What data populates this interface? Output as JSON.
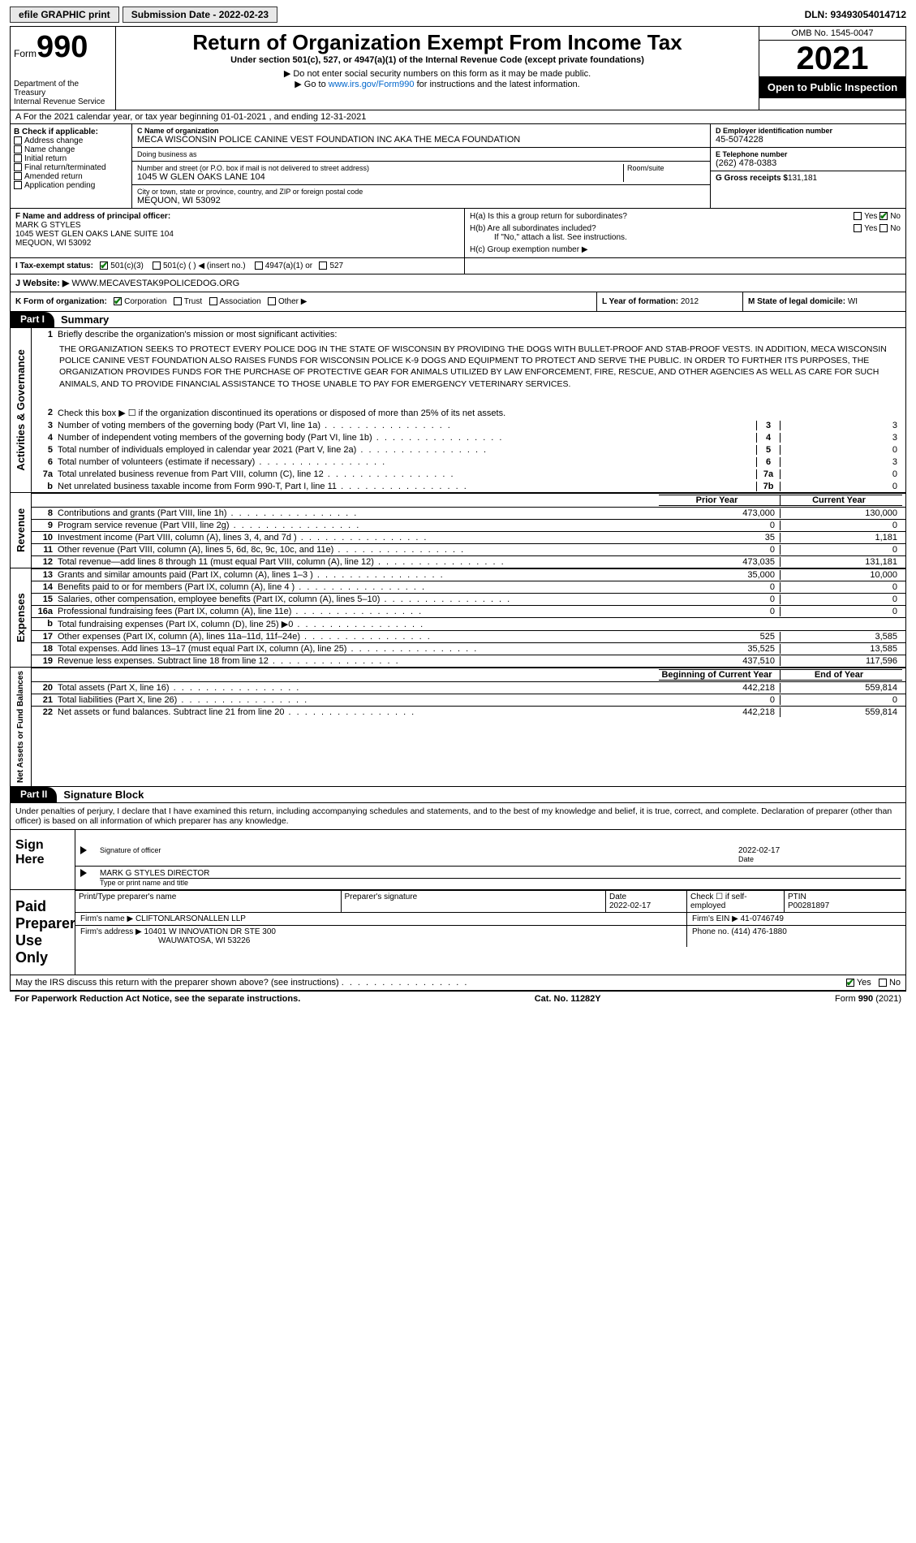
{
  "topbar": {
    "efile_label": "efile GRAPHIC print",
    "submission_label": "Submission Date - 2022-02-23",
    "dln": "DLN: 93493054014712"
  },
  "header": {
    "form_word": "Form",
    "form_num": "990",
    "dept": "Department of the Treasury",
    "irs": "Internal Revenue Service",
    "title": "Return of Organization Exempt From Income Tax",
    "subtitle": "Under section 501(c), 527, or 4947(a)(1) of the Internal Revenue Code (except private foundations)",
    "ssn_note": "▶ Do not enter social security numbers on this form as it may be made public.",
    "goto_pre": "▶ Go to ",
    "goto_link": "www.irs.gov/Form990",
    "goto_post": " for instructions and the latest information.",
    "omb": "OMB No. 1545-0047",
    "year": "2021",
    "open": "Open to Public Inspection"
  },
  "row_a": "A  For the 2021 calendar year, or tax year beginning 01-01-2021   , and ending 12-31-2021",
  "block_b": {
    "title": "B Check if applicable:",
    "items": [
      "Address change",
      "Name change",
      "Initial return",
      "Final return/terminated",
      "Amended return",
      "Application pending"
    ]
  },
  "block_c": {
    "name_label": "C Name of organization",
    "name": "MECA WISCONSIN POLICE CANINE VEST FOUNDATION INC AKA THE MECA FOUNDATION",
    "dba_label": "Doing business as",
    "dba": "",
    "addr_label": "Number and street (or P.O. box if mail is not delivered to street address)",
    "addr": "1045 W GLEN OAKS LANE 104",
    "room_label": "Room/suite",
    "city_label": "City or town, state or province, country, and ZIP or foreign postal code",
    "city": "MEQUON, WI  53092"
  },
  "block_d": {
    "ein_label": "D Employer identification number",
    "ein": "45-5074228",
    "tel_label": "E Telephone number",
    "tel": "(262) 478-0383",
    "gross_label": "G Gross receipts $",
    "gross": "131,181"
  },
  "block_f": {
    "label": "F  Name and address of principal officer:",
    "name": "MARK G STYLES",
    "addr1": "1045 WEST GLEN OAKS LANE SUITE 104",
    "addr2": "MEQUON, WI  53092"
  },
  "block_h": {
    "ha": "H(a)  Is this a group return for subordinates?",
    "hb": "H(b)  Are all subordinates included?",
    "hb_note": "If \"No,\" attach a list. See instructions.",
    "hc": "H(c)  Group exemption number ▶",
    "yes": "Yes",
    "no": "No"
  },
  "row_i": {
    "label": "I   Tax-exempt status:",
    "opts": [
      "501(c)(3)",
      "501(c) (   ) ◀ (insert no.)",
      "4947(a)(1) or",
      "527"
    ]
  },
  "row_j": {
    "label": "J   Website: ▶",
    "val": " WWW.MECAVESTAK9POLICEDOG.ORG"
  },
  "row_k": {
    "label": "K Form of organization:",
    "opts": [
      "Corporation",
      "Trust",
      "Association",
      "Other ▶"
    ]
  },
  "row_l": {
    "label": "L Year of formation: ",
    "val": "2012"
  },
  "row_m": {
    "label": "M State of legal domicile: ",
    "val": "WI"
  },
  "part1": {
    "hdr": "Part I",
    "title": "Summary",
    "line1_label": "Briefly describe the organization's mission or most significant activities:",
    "mission": "THE ORGANIZATION SEEKS TO PROTECT EVERY POLICE DOG IN THE STATE OF WISCONSIN BY PROVIDING THE DOGS WITH BULLET-PROOF AND STAB-PROOF VESTS. IN ADDITION, MECA WISCONSIN POLICE CANINE VEST FOUNDATION ALSO RAISES FUNDS FOR WISCONSIN POLICE K-9 DOGS AND EQUIPMENT TO PROTECT AND SERVE THE PUBLIC. IN ORDER TO FURTHER ITS PURPOSES, THE ORGANIZATION PROVIDES FUNDS FOR THE PURCHASE OF PROTECTIVE GEAR FOR ANIMALS UTILIZED BY LAW ENFORCEMENT, FIRE, RESCUE, AND OTHER AGENCIES AS WELL AS CARE FOR SUCH ANIMALS, AND TO PROVIDE FINANCIAL ASSISTANCE TO THOSE UNABLE TO PAY FOR EMERGENCY VETERINARY SERVICES.",
    "line2": "Check this box ▶ ☐ if the organization discontinued its operations or disposed of more than 25% of its net assets.",
    "tab_gov": "Activities & Governance",
    "tab_rev": "Revenue",
    "tab_exp": "Expenses",
    "tab_net": "Net Assets or Fund Balances",
    "py_hdr": "Prior Year",
    "cy_hdr": "Current Year",
    "boy_hdr": "Beginning of Current Year",
    "eoy_hdr": "End of Year",
    "lines_gov": [
      {
        "n": "3",
        "t": "Number of voting members of the governing body (Part VI, line 1a)",
        "box": "3",
        "v": "3"
      },
      {
        "n": "4",
        "t": "Number of independent voting members of the governing body (Part VI, line 1b)",
        "box": "4",
        "v": "3"
      },
      {
        "n": "5",
        "t": "Total number of individuals employed in calendar year 2021 (Part V, line 2a)",
        "box": "5",
        "v": "0"
      },
      {
        "n": "6",
        "t": "Total number of volunteers (estimate if necessary)",
        "box": "6",
        "v": "3"
      },
      {
        "n": "7a",
        "t": "Total unrelated business revenue from Part VIII, column (C), line 12",
        "box": "7a",
        "v": "0"
      },
      {
        "n": "b",
        "t": "Net unrelated business taxable income from Form 990-T, Part I, line 11",
        "box": "7b",
        "v": "0"
      }
    ],
    "lines_rev": [
      {
        "n": "8",
        "t": "Contributions and grants (Part VIII, line 1h)",
        "py": "473,000",
        "cy": "130,000"
      },
      {
        "n": "9",
        "t": "Program service revenue (Part VIII, line 2g)",
        "py": "0",
        "cy": "0"
      },
      {
        "n": "10",
        "t": "Investment income (Part VIII, column (A), lines 3, 4, and 7d )",
        "py": "35",
        "cy": "1,181"
      },
      {
        "n": "11",
        "t": "Other revenue (Part VIII, column (A), lines 5, 6d, 8c, 9c, 10c, and 11e)",
        "py": "0",
        "cy": "0"
      },
      {
        "n": "12",
        "t": "Total revenue—add lines 8 through 11 (must equal Part VIII, column (A), line 12)",
        "py": "473,035",
        "cy": "131,181"
      }
    ],
    "lines_exp": [
      {
        "n": "13",
        "t": "Grants and similar amounts paid (Part IX, column (A), lines 1–3 )",
        "py": "35,000",
        "cy": "10,000"
      },
      {
        "n": "14",
        "t": "Benefits paid to or for members (Part IX, column (A), line 4 )",
        "py": "0",
        "cy": "0"
      },
      {
        "n": "15",
        "t": "Salaries, other compensation, employee benefits (Part IX, column (A), lines 5–10)",
        "py": "0",
        "cy": "0"
      },
      {
        "n": "16a",
        "t": "Professional fundraising fees (Part IX, column (A), line 11e)",
        "py": "0",
        "cy": "0"
      },
      {
        "n": "b",
        "t": "Total fundraising expenses (Part IX, column (D), line 25) ▶0",
        "py": "",
        "cy": "",
        "shade": true
      },
      {
        "n": "17",
        "t": "Other expenses (Part IX, column (A), lines 11a–11d, 11f–24e)",
        "py": "525",
        "cy": "3,585"
      },
      {
        "n": "18",
        "t": "Total expenses. Add lines 13–17 (must equal Part IX, column (A), line 25)",
        "py": "35,525",
        "cy": "13,585"
      },
      {
        "n": "19",
        "t": "Revenue less expenses. Subtract line 18 from line 12",
        "py": "437,510",
        "cy": "117,596"
      }
    ],
    "lines_net": [
      {
        "n": "20",
        "t": "Total assets (Part X, line 16)",
        "py": "442,218",
        "cy": "559,814"
      },
      {
        "n": "21",
        "t": "Total liabilities (Part X, line 26)",
        "py": "0",
        "cy": "0"
      },
      {
        "n": "22",
        "t": "Net assets or fund balances. Subtract line 21 from line 20",
        "py": "442,218",
        "cy": "559,814"
      }
    ]
  },
  "part2": {
    "hdr": "Part II",
    "title": "Signature Block",
    "perjury": "Under penalties of perjury, I declare that I have examined this return, including accompanying schedules and statements, and to the best of my knowledge and belief, it is true, correct, and complete. Declaration of preparer (other than officer) is based on all information of which preparer has any knowledge.",
    "sign_here": "Sign Here",
    "sig_officer": "Signature of officer",
    "date_label": "Date",
    "date": "2022-02-17",
    "name_title": "MARK G STYLES  DIRECTOR",
    "type_label": "Type or print name and title",
    "paid_prep": "Paid Preparer Use Only",
    "prep_name_label": "Print/Type preparer's name",
    "prep_name": "",
    "prep_sig_label": "Preparer's signature",
    "prep_date_label": "Date",
    "prep_date": "2022-02-17",
    "self_emp": "Check ☐ if self-employed",
    "ptin_label": "PTIN",
    "ptin": "P00281897",
    "firm_name_label": "Firm's name    ▶",
    "firm_name": "CLIFTONLARSONALLEN LLP",
    "firm_ein_label": "Firm's EIN ▶",
    "firm_ein": "41-0746749",
    "firm_addr_label": "Firm's address ▶",
    "firm_addr": "10401 W INNOVATION DR STE 300",
    "firm_city": "WAUWATOSA, WI  53226",
    "phone_label": "Phone no.",
    "phone": "(414) 476-1880",
    "discuss": "May the IRS discuss this return with the preparer shown above? (see instructions)",
    "yes": "Yes",
    "no": "No"
  },
  "footer": {
    "pra": "For Paperwork Reduction Act Notice, see the separate instructions.",
    "cat": "Cat. No. 11282Y",
    "form": "Form 990 (2021)"
  },
  "colors": {
    "link": "#0066cc",
    "check": "#0a7a0a",
    "shade": "#d0d0d0",
    "black": "#000000",
    "white": "#ffffff"
  }
}
